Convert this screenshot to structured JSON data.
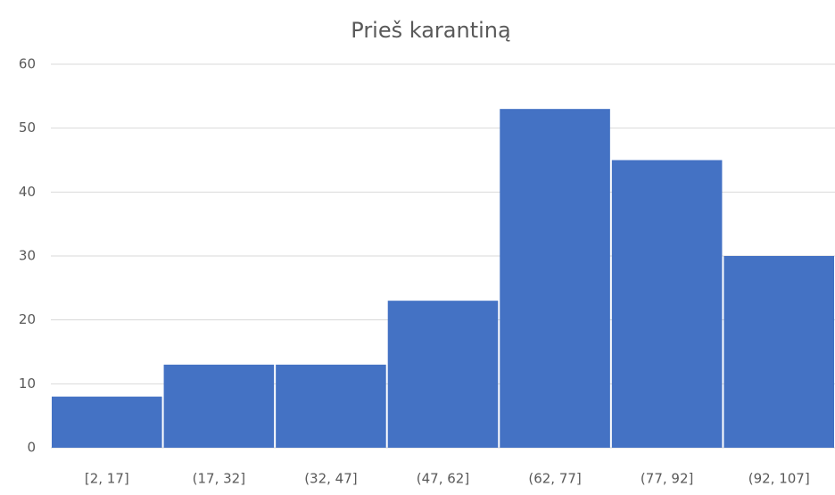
{
  "chart_data": {
    "type": "bar",
    "title": "Prieš karantiną",
    "categories": [
      "[2, 17]",
      "(17, 32]",
      "(32, 47]",
      "(47, 62]",
      "(62, 77]",
      "(77, 92]",
      "(92, 107]"
    ],
    "values": [
      8,
      13,
      13,
      23,
      53,
      45,
      30
    ],
    "color": "#4472c4",
    "ylim": [
      0,
      60
    ],
    "yticks": [
      0,
      10,
      20,
      30,
      40,
      50,
      60
    ],
    "grid": true
  }
}
